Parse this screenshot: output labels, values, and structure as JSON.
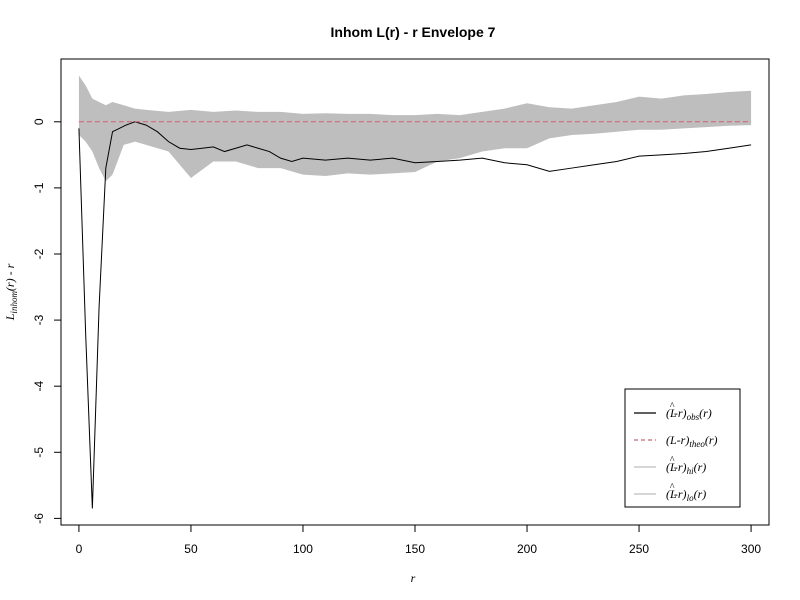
{
  "chart_data": {
    "type": "line",
    "title": "Inhom L(r) - r Envelope 7",
    "xlabel": "r",
    "ylabel": "L_inhom(r) - r",
    "xlim": [
      -8,
      308
    ],
    "ylim": [
      -6.1,
      0.95
    ],
    "x_ticks": [
      0,
      50,
      100,
      150,
      200,
      250,
      300
    ],
    "y_ticks": [
      0,
      -1,
      -2,
      -3,
      -4,
      -5,
      -6
    ],
    "grid": false,
    "legend_position": "bottom-right",
    "series": [
      {
        "name": "(L^-r)obs(r)",
        "color": "#000000",
        "style": "solid",
        "x": [
          0,
          3,
          6,
          9,
          12,
          15,
          18,
          21,
          25,
          30,
          35,
          40,
          45,
          50,
          55,
          60,
          65,
          70,
          75,
          80,
          85,
          90,
          95,
          100,
          110,
          120,
          130,
          140,
          150,
          160,
          170,
          180,
          190,
          200,
          210,
          220,
          230,
          240,
          250,
          260,
          270,
          280,
          290,
          300
        ],
        "values": [
          -0.1,
          -3.2,
          -5.85,
          -2.8,
          -0.7,
          -0.15,
          -0.1,
          -0.05,
          0.0,
          -0.05,
          -0.15,
          -0.3,
          -0.4,
          -0.42,
          -0.4,
          -0.38,
          -0.45,
          -0.4,
          -0.35,
          -0.4,
          -0.45,
          -0.55,
          -0.6,
          -0.55,
          -0.58,
          -0.55,
          -0.58,
          -0.55,
          -0.62,
          -0.6,
          -0.58,
          -0.55,
          -0.62,
          -0.65,
          -0.75,
          -0.7,
          -0.65,
          -0.6,
          -0.52,
          -0.5,
          -0.48,
          -0.45,
          -0.4,
          -0.35
        ]
      },
      {
        "name": "(L-r)theo(r)",
        "color": "#d06070",
        "style": "dashed",
        "x": [
          0,
          300
        ],
        "values": [
          0,
          0
        ]
      },
      {
        "name": "(L^-r)hi(r)",
        "color": "#bebebe",
        "style": "solid",
        "x": [
          0,
          3,
          6,
          9,
          12,
          15,
          20,
          25,
          30,
          40,
          50,
          60,
          70,
          80,
          90,
          100,
          110,
          120,
          130,
          140,
          150,
          160,
          170,
          180,
          190,
          200,
          210,
          220,
          230,
          240,
          250,
          260,
          270,
          280,
          290,
          300
        ],
        "values": [
          0.7,
          0.55,
          0.35,
          0.3,
          0.25,
          0.3,
          0.25,
          0.2,
          0.18,
          0.15,
          0.18,
          0.15,
          0.17,
          0.15,
          0.15,
          0.12,
          0.13,
          0.12,
          0.12,
          0.1,
          0.1,
          0.12,
          0.1,
          0.15,
          0.2,
          0.28,
          0.22,
          0.2,
          0.25,
          0.3,
          0.38,
          0.35,
          0.4,
          0.42,
          0.45,
          0.47
        ]
      },
      {
        "name": "(L^-r)lo(r)",
        "color": "#bebebe",
        "style": "solid",
        "x": [
          0,
          3,
          6,
          9,
          12,
          15,
          20,
          25,
          30,
          40,
          50,
          60,
          70,
          80,
          90,
          100,
          110,
          120,
          130,
          140,
          150,
          160,
          170,
          180,
          190,
          200,
          210,
          220,
          230,
          240,
          250,
          260,
          270,
          280,
          290,
          300
        ],
        "values": [
          -0.2,
          -0.3,
          -0.45,
          -0.7,
          -0.9,
          -0.8,
          -0.35,
          -0.3,
          -0.35,
          -0.45,
          -0.85,
          -0.6,
          -0.6,
          -0.7,
          -0.7,
          -0.8,
          -0.82,
          -0.78,
          -0.8,
          -0.78,
          -0.76,
          -0.6,
          -0.55,
          -0.45,
          -0.4,
          -0.4,
          -0.25,
          -0.2,
          -0.18,
          -0.15,
          -0.12,
          -0.12,
          -0.1,
          -0.08,
          -0.06,
          -0.05
        ]
      }
    ]
  },
  "legend": [
    {
      "base": "(L",
      "hat": "^",
      "mid": "-r)",
      "sub": "obs",
      "tail": "(r)"
    },
    {
      "base": "(L",
      "hat": "",
      "mid": "-r)",
      "sub": "theo",
      "tail": "(r)"
    },
    {
      "base": "(L",
      "hat": "^",
      "mid": "-r)",
      "sub": "hi",
      "tail": "(r)"
    },
    {
      "base": "(L",
      "hat": "^",
      "mid": "-r)",
      "sub": "lo",
      "tail": "(r)"
    }
  ],
  "ylabel_parts": {
    "base": "L",
    "sub": "inhom",
    "tail": "(r) - r"
  }
}
